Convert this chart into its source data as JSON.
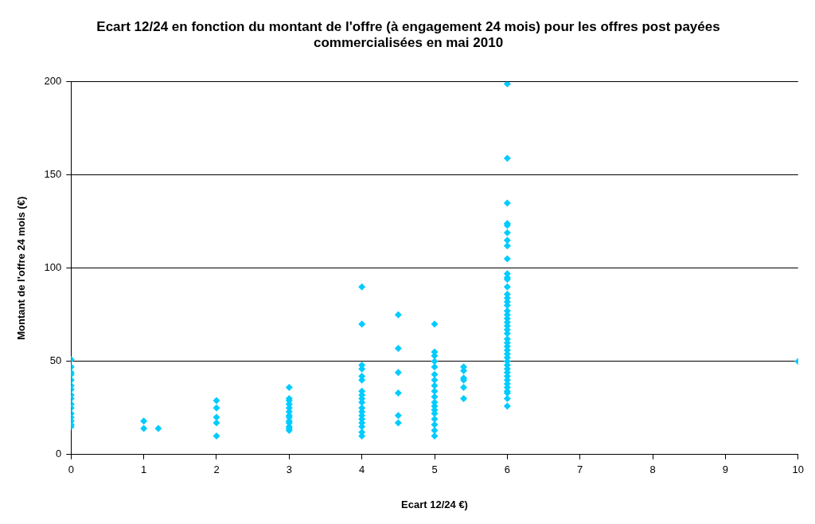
{
  "chart_data": {
    "type": "scatter",
    "title": "Ecart 12/24 en fonction du montant de l'offre (à engagement 24 mois) pour les offres post payées commercialisées en mai 2010",
    "xlabel": "Ecart 12/24 €)",
    "ylabel": "Montant de l'offre 24 mois (€)",
    "xlim": [
      0,
      10
    ],
    "xticks": [
      0,
      1,
      2,
      3,
      4,
      5,
      6,
      7,
      8,
      9,
      10
    ],
    "ylim": [
      0,
      200
    ],
    "yticks": [
      0,
      50,
      100,
      150,
      200
    ],
    "grid": "y",
    "legend": false,
    "marker": "diamond",
    "series": [
      {
        "color": "#00ccff",
        "x": [
          0,
          0,
          0,
          0,
          0,
          0,
          0,
          0,
          0,
          0,
          0,
          0,
          0,
          0,
          0,
          0,
          1,
          1,
          1.2,
          2,
          2,
          2,
          2,
          2,
          3,
          3,
          3,
          3,
          3,
          3,
          3,
          3,
          3,
          3,
          3,
          3,
          3,
          4,
          4,
          4,
          4,
          4,
          4,
          4,
          4,
          4,
          4,
          4,
          4,
          4,
          4,
          4,
          4,
          4,
          4,
          4.5,
          4.5,
          4.5,
          4.5,
          4.5,
          4.5,
          5,
          5,
          5,
          5,
          5,
          5,
          5,
          5,
          5,
          5,
          5,
          5,
          5,
          5,
          5,
          5,
          5,
          5,
          5.4,
          5.4,
          5.4,
          5.4,
          5.4,
          5.4,
          6,
          6,
          6,
          6,
          6,
          6,
          6,
          6,
          6,
          6,
          6,
          6,
          6,
          6,
          6,
          6,
          6,
          6,
          6,
          6,
          6,
          6,
          6,
          6,
          6,
          6,
          6,
          6,
          6,
          6,
          6,
          6,
          6,
          6,
          6,
          6,
          6,
          6,
          6,
          6,
          6,
          6,
          10
        ],
        "values": [
          51,
          47,
          44,
          43,
          40,
          37,
          35,
          32,
          30,
          27,
          25,
          22,
          20,
          18,
          16,
          15,
          18,
          14,
          14,
          29,
          25,
          20,
          17,
          10,
          36,
          30,
          29,
          27,
          25,
          23,
          21,
          20,
          18,
          17,
          15,
          14,
          13,
          90,
          70,
          48,
          46,
          42,
          40,
          34,
          32,
          30,
          28,
          25,
          23,
          21,
          19,
          17,
          15,
          12,
          10,
          75,
          57,
          44,
          33,
          21,
          17,
          70,
          55,
          53,
          50,
          47,
          43,
          40,
          37,
          34,
          31,
          28,
          26,
          24,
          22,
          19,
          16,
          13,
          10,
          47,
          45,
          41,
          40,
          36,
          30,
          199,
          159,
          135,
          124,
          123,
          119,
          115,
          112,
          105,
          97,
          95,
          94,
          90,
          86,
          84,
          82,
          80,
          77,
          75,
          73,
          71,
          69,
          67,
          65,
          62,
          60,
          58,
          56,
          54,
          52,
          50,
          48,
          46,
          44,
          42,
          40,
          38,
          36,
          34,
          33,
          30,
          26,
          50
        ]
      }
    ]
  }
}
